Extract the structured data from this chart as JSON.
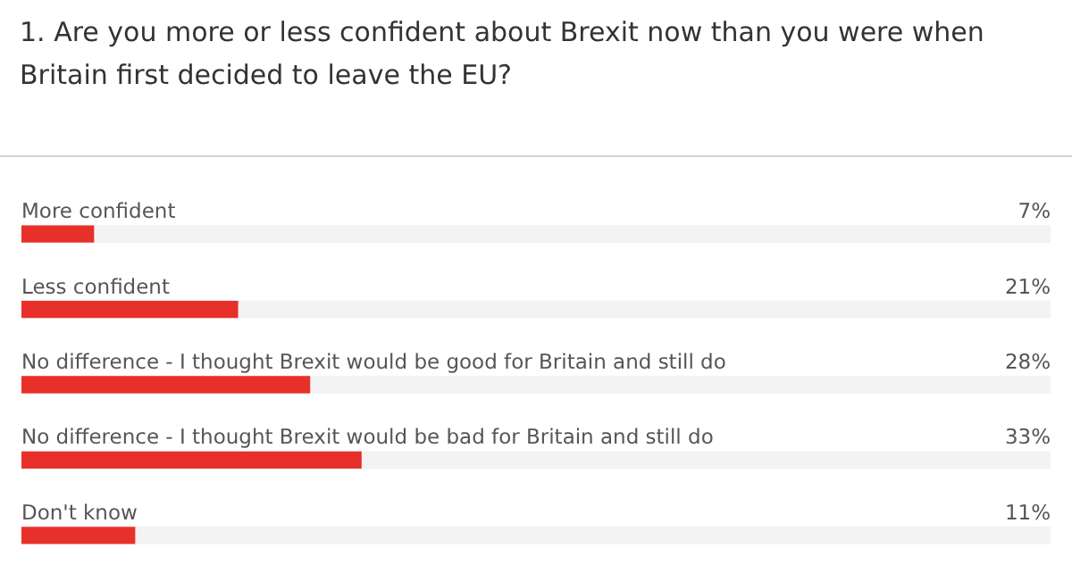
{
  "chart_data": {
    "type": "bar",
    "orientation": "horizontal",
    "title": "1. Are you more or less confident about Brexit now than you were when Britain first decided to leave the EU?",
    "categories": [
      "More confident",
      "Less confident",
      "No difference - I thought Brexit would be good for Britain and still do",
      "No difference - I thought Brexit would be bad for Britain and still do",
      "Don't know"
    ],
    "values": [
      7,
      21,
      28,
      33,
      11
    ],
    "value_labels": [
      "7%",
      "21%",
      "28%",
      "33%",
      "11%"
    ],
    "color": "#e8302b",
    "xlim": [
      0,
      100
    ]
  }
}
